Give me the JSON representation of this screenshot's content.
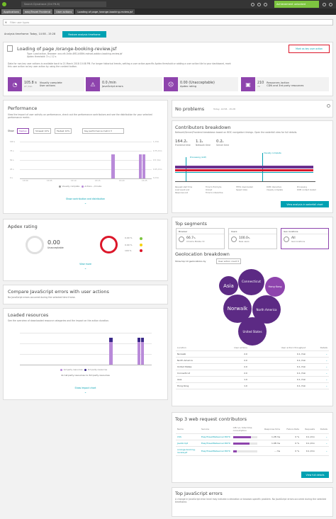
{
  "topbar": {
    "search_placeholder": "Search Dynatrace (Ctrl F6.8)",
    "achievement": "Achievement unlocked"
  },
  "breadcrumbs": [
    "Applications",
    "easyTravel Frontend",
    "User actions",
    "Loading of page /orange-booking-review.jsf"
  ],
  "filter": {
    "placeholder": "Filter user types"
  },
  "timeframe": {
    "label": "Analysis timeframe: Today, 14:58 - 15:28",
    "button": "Restore analysis timeframe"
  },
  "action_header": {
    "title": "Loading of page /orange-booking-review.jsf",
    "meta1": "Type: Load action, Browser: xxx-ntt-0c4e-4f81-b58fd-rsdnad-aabbcc-booking-review.jsf",
    "meta2": "Apdex threshold: 3 s / 12 s",
    "desc": "Data for non-key user actions is available back to 21 March 2018 10:08 PM. For longer historical trends, setting a user action-specific Apdex threshold or adding a user action tile to your dashboard, mark this user action as key user action by using the context button.",
    "key_button": "Mark as key user action",
    "kpis": [
      {
        "icon": "speedometer-icon",
        "value": "105.8 s",
        "sub": "27 /min",
        "label1": "Visually complete",
        "label2": "User actions"
      },
      {
        "icon": "javascript-error-icon",
        "value": "0.0 /min",
        "sub": "",
        "label1": "JavaScript errors",
        "label2": ""
      },
      {
        "icon": "apdex-face-icon",
        "value": "0.00 (Unacceptable)",
        "sub": "",
        "label1": "Apdex rating",
        "label2": ""
      },
      {
        "icon": "resource-icon",
        "value": "210",
        "sub": "72",
        "label1": "Resources /action",
        "label2": "CDN and 3rd party resources"
      }
    ]
  },
  "performance": {
    "title": "Performance",
    "desc": "View the impact of user activity on performance, check out the performance contributors and see the distribution for your selected performance metric.",
    "show_label": "Show",
    "chips": [
      "Median",
      "Slowest 10%",
      "Fastest 10%",
      "Key performance metric"
    ],
    "y_left": [
      "100 s",
      "75 s",
      "50 s",
      "25 s",
      "0 s"
    ],
    "y_right": [
      "1 /min",
      "0.75 /min",
      "0.5 /min",
      "0.25 /min",
      "0 /min"
    ],
    "x_ticks": [
      "15:00",
      "15:05",
      "15:10",
      "15:15",
      "15:20",
      "15:25"
    ],
    "legend": [
      "Visually complete",
      "Actions - /minute"
    ],
    "link": "Show contribution and distribution"
  },
  "no_problems": {
    "title": "No problems",
    "time": "Today, 14:58 - 15:28"
  },
  "contributors": {
    "title": "Contributors breakdown",
    "desc": "Network/Server/Frontend breakdown based on W3C navigation timings. Open the waterfall view for full details.",
    "metrics": [
      {
        "value": "164.2",
        "unit": "s",
        "label": "Frontend time"
      },
      {
        "value": "1.1",
        "unit": "s",
        "label": "Network time"
      },
      {
        "value": "0.2",
        "unit": "s",
        "label": "Server time"
      }
    ],
    "markers": [
      "Processing (LCP)",
      "Visually complete"
    ],
    "legend": [
      "Request start time",
      "Time to first byte",
      "HTML downloaded",
      "DOM interactive",
      "Processing",
      "Load event end",
      "Onload",
      "Speed Index",
      "Visually complete",
      "DOM content loaded",
      "Response end",
      "Time to interactive"
    ],
    "button": "View analysis in waterfall chart"
  },
  "apdex": {
    "title": "Apdex rating",
    "value": "0.00",
    "label": "Unacceptable",
    "rows": [
      "0.00 %",
      "0.00 %",
      "100 %"
    ],
    "link": "View more"
  },
  "top_segments": {
    "title": "Top segments",
    "cards": [
      {
        "header": "Browser",
        "value": "66.7",
        "unit": "%",
        "name": "Chrome Mobile 72"
      },
      {
        "header": "Users",
        "value": "100.0",
        "unit": "%",
        "name": "New users"
      },
      {
        "header": "Geo locations",
        "value": "All",
        "unit": "",
        "name": "Geo locations"
      }
    ]
  },
  "geo": {
    "title": "Geolocation breakdown",
    "show_label": "Show top 10 geolocations by",
    "by": "User action count",
    "bubbles": [
      "Asia",
      "Connecticut",
      "Hong Kong",
      "Norwalk",
      "North America",
      "United States"
    ],
    "headers": [
      "Location",
      "User actions",
      "User action throughput",
      "Details"
    ],
    "rows": [
      {
        "loc": "Norwalk",
        "ua": "2.0",
        "thr": "0.1 /min"
      },
      {
        "loc": "North America",
        "ua": "2.0",
        "thr": "0.1 /min"
      },
      {
        "loc": "United States",
        "ua": "2.0",
        "thr": "0.1 /min"
      },
      {
        "loc": "Connecticut",
        "ua": "2.0",
        "thr": "0.1 /min"
      },
      {
        "loc": "Asia",
        "ua": "1.0",
        "thr": "0.1 /min"
      },
      {
        "loc": "Hong Kong",
        "ua": "1.0",
        "thr": "0.1 /min"
      }
    ]
  },
  "compare_js": {
    "title": "Compare JavaScript errors with user actions",
    "desc": "No JavaScript errors occurred during the selected time frame."
  },
  "loaded_resources": {
    "title": "Loaded resources",
    "desc": "See the overview of downloaded resource categories and the impact on the action duration.",
    "legend": [
      "1st party resources",
      "3rd party resources"
    ],
    "counts": "4x 1st party resources   1x 3rd party resources",
    "link": "Show impact chart"
  },
  "web_requests": {
    "title": "Top 3 web request contributors",
    "headers": [
      "Name",
      "Service",
      "CPU vs. total time consumption",
      "Response time",
      "Failure Rate",
      "Requests",
      "Details"
    ],
    "rows": [
      {
        "name": "CSS",
        "service": "EasyTravelWebserver:8079",
        "resp": "1.28 ms",
        "fail": "0 %",
        "req": "0.1 /min",
        "bar": 0.75
      },
      {
        "name": "JavaScript",
        "service": "EasyTravelWebserver:8079",
        "resp": "1.08 ms",
        "fail": "0 %",
        "req": "0.1 /min",
        "bar": 0.7
      },
      {
        "name": "/orange-booking-review.jsf",
        "service": "EasyTravelWebserver:8079",
        "resp": "... ms",
        "fail": "0 %",
        "req": "0.1 /min",
        "bar": 0.15
      }
    ],
    "button": "View full details"
  },
  "top_js": {
    "title": "Top JavaScript errors",
    "desc": "A change in JavaScript error level may indicate a deviation or browser-specific problem. No JavaScript errors occurred during the selected timeframe."
  }
}
